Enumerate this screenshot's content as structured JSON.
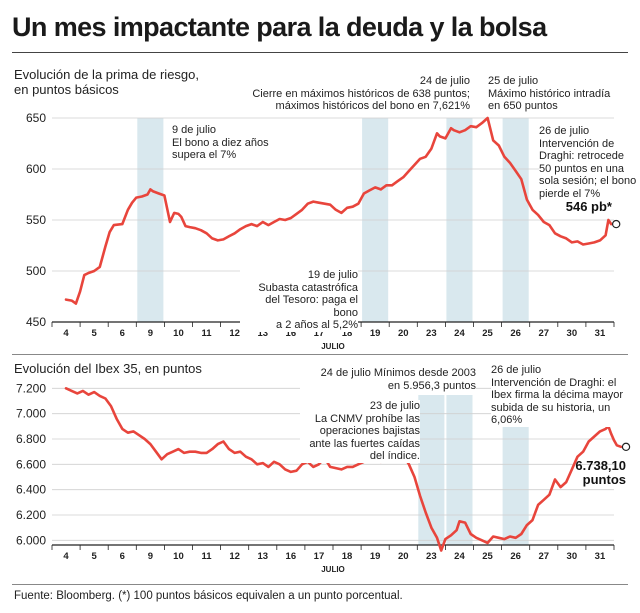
{
  "title": "Un mes impactante para la deuda y la bolsa",
  "footer": "Fuente: Bloomberg. (*) 100 puntos básicos equivalen a un punto porcentual.",
  "colors": {
    "line": "#e8453c",
    "shade": "#d9e8ee",
    "axis": "#222222",
    "grid": "#cfcfcf"
  },
  "chart_data": [
    {
      "type": "line",
      "title": "",
      "ylabel_lines": [
        "Evolución de la prima de riesgo,",
        "en puntos básicos"
      ],
      "xlabel": "JULIO",
      "ylim": [
        450,
        650
      ],
      "yticks": [
        450,
        500,
        550,
        600,
        650
      ],
      "ytick_labels": [
        "450",
        "500",
        "550",
        "600",
        "650"
      ],
      "categories": [
        "4",
        "5",
        "6",
        "9",
        "10",
        "11",
        "12",
        "13",
        "16",
        "17",
        "18",
        "19",
        "20",
        "23",
        "24",
        "25",
        "26",
        "27",
        "30",
        "31"
      ],
      "shaded_days": [
        "9",
        "19",
        "24",
        "26"
      ],
      "series": [
        {
          "name": "",
          "values": [
            [
              0.0,
              472
            ],
            [
              0.2,
              471
            ],
            [
              0.35,
              468
            ],
            [
              0.5,
              480
            ],
            [
              0.65,
              496
            ],
            [
              0.8,
              498
            ],
            [
              1.0,
              500
            ],
            [
              1.2,
              504
            ],
            [
              1.4,
              524
            ],
            [
              1.55,
              538
            ],
            [
              1.7,
              545
            ],
            [
              2.0,
              546
            ],
            [
              2.2,
              560
            ],
            [
              2.35,
              567
            ],
            [
              2.5,
              572
            ],
            [
              2.7,
              573
            ],
            [
              2.9,
              575
            ],
            [
              3.0,
              580
            ],
            [
              3.1,
              578
            ],
            [
              3.3,
              576
            ],
            [
              3.5,
              574
            ],
            [
              3.7,
              548
            ],
            [
              3.85,
              557
            ],
            [
              4.0,
              556
            ],
            [
              4.1,
              553
            ],
            [
              4.25,
              544
            ],
            [
              4.4,
              543
            ],
            [
              4.6,
              542
            ],
            [
              4.8,
              540
            ],
            [
              5.0,
              537
            ],
            [
              5.2,
              532
            ],
            [
              5.4,
              530
            ],
            [
              5.6,
              531
            ],
            [
              5.8,
              534
            ],
            [
              6.0,
              537
            ],
            [
              6.2,
              541
            ],
            [
              6.4,
              544
            ],
            [
              6.6,
              546
            ],
            [
              6.8,
              544
            ],
            [
              7.0,
              548
            ],
            [
              7.2,
              545
            ],
            [
              7.4,
              548
            ],
            [
              7.6,
              551
            ],
            [
              7.8,
              550
            ],
            [
              8.0,
              552
            ],
            [
              8.2,
              556
            ],
            [
              8.4,
              560
            ],
            [
              8.6,
              566
            ],
            [
              8.8,
              568
            ],
            [
              9.0,
              567
            ],
            [
              9.2,
              566
            ],
            [
              9.4,
              565
            ],
            [
              9.6,
              560
            ],
            [
              9.8,
              557
            ],
            [
              10.0,
              562
            ],
            [
              10.2,
              563
            ],
            [
              10.4,
              566
            ],
            [
              10.6,
              576
            ],
            [
              10.8,
              579
            ],
            [
              11.0,
              582
            ],
            [
              11.2,
              580
            ],
            [
              11.4,
              584
            ],
            [
              11.6,
              584
            ],
            [
              11.8,
              588
            ],
            [
              12.0,
              592
            ],
            [
              12.2,
              598
            ],
            [
              12.4,
              604
            ],
            [
              12.6,
              610
            ],
            [
              12.8,
              612
            ],
            [
              13.0,
              620
            ],
            [
              13.2,
              635
            ],
            [
              13.3,
              632
            ],
            [
              13.5,
              630
            ],
            [
              13.7,
              640
            ],
            [
              13.8,
              638
            ],
            [
              14.0,
              636
            ],
            [
              14.2,
              638
            ],
            [
              14.4,
              642
            ],
            [
              14.6,
              641
            ],
            [
              14.8,
              645
            ],
            [
              15.0,
              650
            ],
            [
              15.2,
              628
            ],
            [
              15.4,
              623
            ],
            [
              15.6,
              612
            ],
            [
              15.8,
              606
            ],
            [
              16.0,
              598
            ],
            [
              16.2,
              590
            ],
            [
              16.4,
              570
            ],
            [
              16.6,
              560
            ],
            [
              16.8,
              555
            ],
            [
              17.0,
              548
            ],
            [
              17.2,
              545
            ],
            [
              17.4,
              537
            ],
            [
              17.6,
              534
            ],
            [
              17.8,
              532
            ],
            [
              18.0,
              528
            ],
            [
              18.2,
              529
            ],
            [
              18.4,
              526
            ],
            [
              18.6,
              527
            ],
            [
              18.8,
              528
            ],
            [
              19.0,
              530
            ],
            [
              19.2,
              535
            ],
            [
              19.3,
              550
            ],
            [
              19.4,
              546
            ]
          ]
        }
      ],
      "end_label": "546 pb*",
      "annotations": [
        {
          "day": "9",
          "text": [
            "9 de julio",
            "El bono a diez años",
            "supera el 7%"
          ]
        },
        {
          "day": "19",
          "text": [
            "19 de julio",
            "Subasta catastrófica",
            "del Tesoro: paga el bono",
            "a 2 años al 5,2%"
          ]
        },
        {
          "day": "24",
          "text": [
            "24 de julio",
            "Cierre en máximos históricos de 638 puntos;",
            "máximos históricos del bono en 7,621%"
          ]
        },
        {
          "day": "25",
          "text": [
            "25 de julio",
            "Máximo histórico intradía",
            "en 650 puntos"
          ]
        },
        {
          "day": "26",
          "text": [
            "26 de julio",
            "Intervención de",
            "Draghi: retrocede",
            "50 puntos en una",
            "sola sesión; el bono",
            "pierde el 7%"
          ]
        }
      ]
    },
    {
      "type": "line",
      "title": "",
      "ylabel_lines": [
        "Evolución del Ibex 35, en puntos"
      ],
      "xlabel": "JULIO",
      "ylim": [
        5900,
        7250
      ],
      "yticks": [
        6000,
        6200,
        6400,
        6600,
        6800,
        7000,
        7200
      ],
      "ytick_labels": [
        "6.000",
        "6.200",
        "6.400",
        "6.600",
        "6.800",
        "7.000",
        "7.200"
      ],
      "categories": [
        "4",
        "5",
        "6",
        "9",
        "10",
        "11",
        "12",
        "13",
        "16",
        "17",
        "18",
        "19",
        "20",
        "23",
        "24",
        "25",
        "26",
        "27",
        "30",
        "31"
      ],
      "shaded_days": [
        "23",
        "24",
        "26"
      ],
      "series": [
        {
          "name": "",
          "values": [
            [
              0.0,
              7200
            ],
            [
              0.2,
              7180
            ],
            [
              0.4,
              7160
            ],
            [
              0.6,
              7180
            ],
            [
              0.8,
              7150
            ],
            [
              1.0,
              7170
            ],
            [
              1.2,
              7140
            ],
            [
              1.4,
              7120
            ],
            [
              1.6,
              7060
            ],
            [
              1.8,
              6960
            ],
            [
              2.0,
              6880
            ],
            [
              2.2,
              6850
            ],
            [
              2.4,
              6860
            ],
            [
              2.6,
              6830
            ],
            [
              2.8,
              6800
            ],
            [
              3.0,
              6760
            ],
            [
              3.2,
              6700
            ],
            [
              3.4,
              6640
            ],
            [
              3.6,
              6680
            ],
            [
              3.8,
              6700
            ],
            [
              4.0,
              6720
            ],
            [
              4.2,
              6690
            ],
            [
              4.4,
              6700
            ],
            [
              4.6,
              6700
            ],
            [
              4.8,
              6690
            ],
            [
              5.0,
              6690
            ],
            [
              5.2,
              6720
            ],
            [
              5.4,
              6760
            ],
            [
              5.6,
              6780
            ],
            [
              5.8,
              6720
            ],
            [
              6.0,
              6690
            ],
            [
              6.2,
              6700
            ],
            [
              6.4,
              6660
            ],
            [
              6.6,
              6640
            ],
            [
              6.8,
              6600
            ],
            [
              7.0,
              6610
            ],
            [
              7.2,
              6580
            ],
            [
              7.4,
              6620
            ],
            [
              7.6,
              6600
            ],
            [
              7.8,
              6560
            ],
            [
              8.0,
              6540
            ],
            [
              8.2,
              6550
            ],
            [
              8.4,
              6600
            ],
            [
              8.6,
              6620
            ],
            [
              8.8,
              6580
            ],
            [
              9.0,
              6600
            ],
            [
              9.2,
              6650
            ],
            [
              9.4,
              6580
            ],
            [
              9.6,
              6570
            ],
            [
              9.8,
              6560
            ],
            [
              10.0,
              6580
            ],
            [
              10.2,
              6580
            ],
            [
              10.4,
              6600
            ],
            [
              10.6,
              6620
            ],
            [
              10.8,
              6640
            ],
            [
              11.0,
              6660
            ],
            [
              11.2,
              6620
            ],
            [
              11.4,
              6640
            ],
            [
              11.6,
              6650
            ],
            [
              11.8,
              6670
            ],
            [
              12.0,
              6670
            ],
            [
              12.2,
              6600
            ],
            [
              12.4,
              6500
            ],
            [
              12.6,
              6350
            ],
            [
              12.8,
              6220
            ],
            [
              13.0,
              6100
            ],
            [
              13.2,
              6020
            ],
            [
              13.35,
              5920
            ],
            [
              13.5,
              6010
            ],
            [
              13.7,
              6040
            ],
            [
              13.9,
              6080
            ],
            [
              14.0,
              6150
            ],
            [
              14.2,
              6140
            ],
            [
              14.4,
              6050
            ],
            [
              14.6,
              6020
            ],
            [
              14.8,
              6000
            ],
            [
              15.0,
              5980
            ],
            [
              15.2,
              6030
            ],
            [
              15.4,
              6020
            ],
            [
              15.6,
              6010
            ],
            [
              15.8,
              6030
            ],
            [
              16.0,
              6020
            ],
            [
              16.2,
              6050
            ],
            [
              16.4,
              6120
            ],
            [
              16.6,
              6160
            ],
            [
              16.8,
              6280
            ],
            [
              17.0,
              6320
            ],
            [
              17.2,
              6360
            ],
            [
              17.4,
              6480
            ],
            [
              17.6,
              6420
            ],
            [
              17.8,
              6460
            ],
            [
              18.0,
              6560
            ],
            [
              18.2,
              6660
            ],
            [
              18.4,
              6700
            ],
            [
              18.6,
              6780
            ],
            [
              18.8,
              6820
            ],
            [
              19.0,
              6860
            ],
            [
              19.2,
              6880
            ],
            [
              19.3,
              6900
            ],
            [
              19.4,
              6840
            ],
            [
              19.5,
              6790
            ],
            [
              19.6,
              6750
            ],
            [
              19.75,
              6738.1
            ]
          ]
        }
      ],
      "end_label_lines": [
        "6.738,10",
        "puntos"
      ],
      "annotations": [
        {
          "day": "24",
          "text": [
            "24 de julio Mínimos desde 2003",
            "en 5.956,3 puntos"
          ]
        },
        {
          "day": "23",
          "text": [
            "23 de julio",
            "La CNMV prohíbe las",
            "operaciones bajistas",
            "ante las fuertes caídas",
            "del índice."
          ]
        },
        {
          "day": "26",
          "text": [
            "26 de julio",
            "Intervención de Draghi: el",
            "Ibex firma la décima mayor",
            "subida de su historia, un",
            "6,06%"
          ]
        }
      ]
    }
  ]
}
